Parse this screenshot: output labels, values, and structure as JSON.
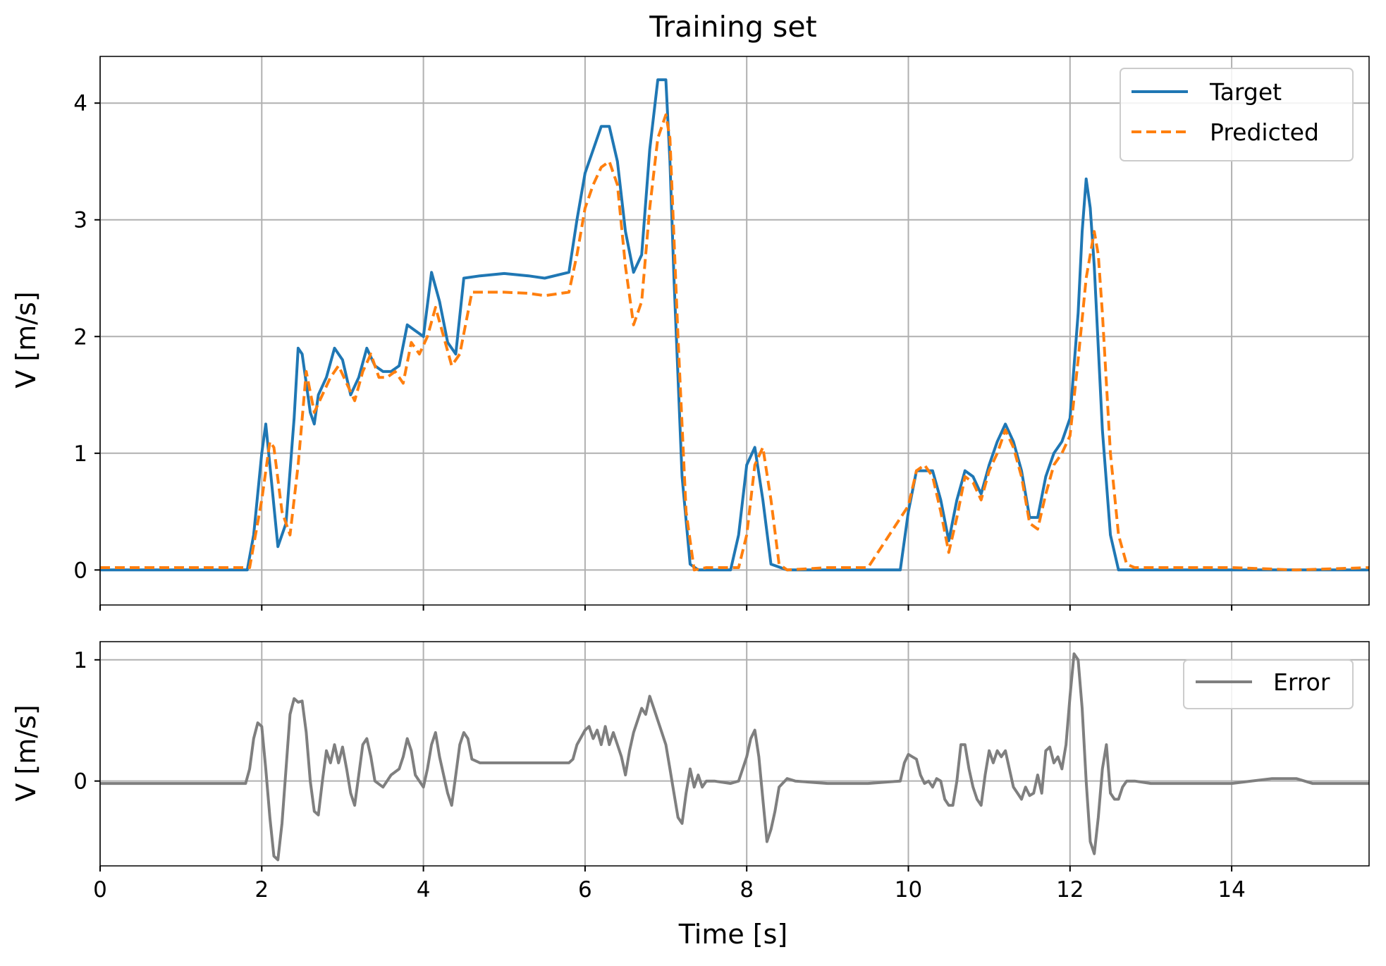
{
  "chart_data": [
    {
      "type": "line",
      "title": "Training set",
      "xlabel": "",
      "ylabel": "V [m/s]",
      "xlim": [
        0,
        15.7
      ],
      "ylim": [
        -0.3,
        4.4
      ],
      "xticks": [
        0,
        2,
        4,
        6,
        8,
        10,
        12,
        14
      ],
      "yticks": [
        0,
        1,
        2,
        3,
        4
      ],
      "grid": true,
      "legend_position": "top-right",
      "colors": {
        "Target": "#1f77b4",
        "Predicted": "#ff7f0e"
      },
      "series": [
        {
          "name": "Target",
          "style": "solid",
          "x": [
            0,
            1.82,
            1.9,
            2.0,
            2.05,
            2.1,
            2.2,
            2.3,
            2.4,
            2.45,
            2.5,
            2.55,
            2.6,
            2.65,
            2.7,
            2.8,
            2.9,
            3.0,
            3.1,
            3.2,
            3.3,
            3.4,
            3.5,
            3.6,
            3.7,
            3.8,
            3.9,
            4.0,
            4.1,
            4.2,
            4.3,
            4.4,
            4.5,
            4.7,
            5.0,
            5.3,
            5.5,
            5.8,
            5.9,
            6.0,
            6.1,
            6.2,
            6.3,
            6.4,
            6.5,
            6.6,
            6.7,
            6.8,
            6.9,
            7.0,
            7.05,
            7.1,
            7.2,
            7.3,
            7.4,
            7.8,
            7.9,
            8.0,
            8.1,
            8.2,
            8.3,
            8.5,
            9.0,
            9.5,
            9.9,
            10.0,
            10.1,
            10.2,
            10.3,
            10.4,
            10.5,
            10.6,
            10.7,
            10.8,
            10.9,
            11.0,
            11.1,
            11.2,
            11.3,
            11.4,
            11.5,
            11.6,
            11.7,
            11.8,
            11.9,
            12.0,
            12.1,
            12.15,
            12.2,
            12.25,
            12.3,
            12.4,
            12.5,
            12.6,
            12.7,
            13.0,
            14.0,
            15.7
          ],
          "y": [
            0,
            0,
            0.3,
            1.0,
            1.25,
            0.9,
            0.2,
            0.4,
            1.3,
            1.9,
            1.85,
            1.6,
            1.35,
            1.25,
            1.5,
            1.65,
            1.9,
            1.8,
            1.5,
            1.65,
            1.9,
            1.75,
            1.7,
            1.7,
            1.75,
            2.1,
            2.05,
            2.0,
            2.55,
            2.3,
            1.95,
            1.85,
            2.5,
            2.52,
            2.54,
            2.52,
            2.5,
            2.55,
            3.0,
            3.4,
            3.6,
            3.8,
            3.8,
            3.5,
            2.9,
            2.55,
            2.7,
            3.6,
            4.2,
            4.2,
            3.5,
            2.5,
            0.8,
            0.05,
            0,
            0,
            0.3,
            0.9,
            1.05,
            0.6,
            0.05,
            0,
            0,
            0,
            0,
            0.5,
            0.85,
            0.85,
            0.85,
            0.6,
            0.25,
            0.6,
            0.85,
            0.8,
            0.65,
            0.9,
            1.1,
            1.25,
            1.1,
            0.85,
            0.45,
            0.45,
            0.8,
            1.0,
            1.1,
            1.3,
            2.2,
            2.9,
            3.35,
            3.1,
            2.6,
            1.2,
            0.3,
            0,
            0,
            0,
            0,
            0
          ]
        },
        {
          "name": "Predicted",
          "style": "dashed",
          "x": [
            0,
            1.85,
            2.0,
            2.1,
            2.15,
            2.25,
            2.35,
            2.45,
            2.55,
            2.65,
            2.75,
            2.85,
            2.95,
            3.05,
            3.15,
            3.25,
            3.35,
            3.45,
            3.55,
            3.65,
            3.75,
            3.85,
            3.95,
            4.05,
            4.15,
            4.25,
            4.35,
            4.45,
            4.6,
            4.8,
            5.0,
            5.3,
            5.5,
            5.8,
            5.9,
            6.0,
            6.1,
            6.2,
            6.3,
            6.4,
            6.5,
            6.6,
            6.7,
            6.8,
            6.9,
            7.0,
            7.05,
            7.15,
            7.25,
            7.35,
            7.5,
            7.9,
            8.0,
            8.1,
            8.2,
            8.3,
            8.4,
            8.5,
            9.0,
            9.5,
            10.0,
            10.1,
            10.2,
            10.3,
            10.4,
            10.5,
            10.6,
            10.7,
            10.8,
            10.9,
            11.0,
            11.1,
            11.2,
            11.3,
            11.4,
            11.5,
            11.6,
            11.7,
            11.8,
            11.9,
            12.0,
            12.1,
            12.2,
            12.3,
            12.35,
            12.4,
            12.5,
            12.6,
            12.7,
            12.8,
            13.0,
            14.0,
            14.8,
            15.7
          ],
          "y": [
            0.02,
            0.02,
            0.6,
            1.1,
            1.05,
            0.5,
            0.3,
            0.9,
            1.7,
            1.35,
            1.5,
            1.65,
            1.75,
            1.6,
            1.45,
            1.7,
            1.85,
            1.65,
            1.65,
            1.7,
            1.6,
            1.95,
            1.85,
            2.0,
            2.25,
            2.0,
            1.75,
            1.85,
            2.38,
            2.38,
            2.38,
            2.37,
            2.35,
            2.38,
            2.7,
            3.1,
            3.3,
            3.45,
            3.5,
            3.3,
            2.6,
            2.1,
            2.3,
            3.1,
            3.7,
            3.9,
            3.7,
            2.0,
            0.5,
            0.0,
            0.02,
            0.02,
            0.3,
            0.9,
            1.05,
            0.6,
            0.05,
            0,
            0.02,
            0.02,
            0.55,
            0.85,
            0.9,
            0.8,
            0.5,
            0.15,
            0.45,
            0.8,
            0.75,
            0.6,
            0.85,
            1.0,
            1.2,
            1.05,
            0.8,
            0.4,
            0.35,
            0.65,
            0.9,
            1.0,
            1.15,
            1.8,
            2.5,
            2.9,
            2.7,
            2.2,
            1.0,
            0.3,
            0.05,
            0.02,
            0.02,
            0.02,
            0.0,
            0.02
          ]
        }
      ]
    },
    {
      "type": "line",
      "title": "",
      "xlabel": "Time [s]",
      "ylabel": "V [m/s]",
      "xlim": [
        0,
        15.7
      ],
      "ylim": [
        -0.7,
        1.15
      ],
      "xticks": [
        0,
        2,
        4,
        6,
        8,
        10,
        12,
        14
      ],
      "yticks": [
        0,
        1
      ],
      "grid": true,
      "legend_position": "top-right",
      "colors": {
        "Error": "#7f7f7f"
      },
      "series": [
        {
          "name": "Error",
          "style": "solid",
          "x": [
            0,
            1.8,
            1.85,
            1.9,
            1.95,
            2.0,
            2.05,
            2.1,
            2.15,
            2.2,
            2.25,
            2.3,
            2.35,
            2.4,
            2.45,
            2.5,
            2.55,
            2.6,
            2.65,
            2.7,
            2.75,
            2.8,
            2.85,
            2.9,
            2.95,
            3.0,
            3.05,
            3.1,
            3.15,
            3.2,
            3.25,
            3.3,
            3.35,
            3.4,
            3.5,
            3.6,
            3.7,
            3.75,
            3.8,
            3.85,
            3.9,
            4.0,
            4.05,
            4.1,
            4.15,
            4.2,
            4.3,
            4.35,
            4.4,
            4.45,
            4.5,
            4.55,
            4.6,
            4.7,
            5.0,
            5.5,
            5.8,
            5.85,
            5.9,
            6.0,
            6.05,
            6.1,
            6.15,
            6.2,
            6.25,
            6.3,
            6.35,
            6.4,
            6.45,
            6.5,
            6.55,
            6.6,
            6.65,
            6.7,
            6.75,
            6.8,
            6.85,
            6.9,
            6.95,
            7.0,
            7.05,
            7.1,
            7.15,
            7.2,
            7.25,
            7.3,
            7.35,
            7.4,
            7.45,
            7.5,
            7.6,
            7.8,
            7.9,
            8.0,
            8.05,
            8.1,
            8.15,
            8.2,
            8.25,
            8.3,
            8.35,
            8.4,
            8.5,
            8.6,
            9.0,
            9.5,
            9.9,
            9.95,
            10.0,
            10.05,
            10.1,
            10.15,
            10.2,
            10.25,
            10.3,
            10.35,
            10.4,
            10.45,
            10.5,
            10.55,
            10.6,
            10.65,
            10.7,
            10.75,
            10.8,
            10.85,
            10.9,
            10.95,
            11.0,
            11.05,
            11.1,
            11.15,
            11.2,
            11.25,
            11.3,
            11.35,
            11.4,
            11.45,
            11.5,
            11.55,
            11.6,
            11.65,
            11.7,
            11.75,
            11.8,
            11.85,
            11.9,
            11.95,
            12.0,
            12.05,
            12.1,
            12.15,
            12.2,
            12.25,
            12.3,
            12.35,
            12.4,
            12.45,
            12.5,
            12.55,
            12.6,
            12.65,
            12.7,
            12.8,
            13.0,
            14.0,
            14.5,
            14.8,
            15.0,
            15.7
          ],
          "y": [
            -0.02,
            -0.02,
            0.1,
            0.35,
            0.48,
            0.45,
            0.1,
            -0.3,
            -0.62,
            -0.65,
            -0.35,
            0.1,
            0.55,
            0.68,
            0.65,
            0.66,
            0.4,
            0.0,
            -0.25,
            -0.28,
            0.0,
            0.25,
            0.15,
            0.3,
            0.15,
            0.28,
            0.1,
            -0.1,
            -0.2,
            0.05,
            0.3,
            0.35,
            0.2,
            0.0,
            -0.05,
            0.05,
            0.1,
            0.2,
            0.35,
            0.25,
            0.05,
            -0.05,
            0.1,
            0.3,
            0.4,
            0.2,
            -0.1,
            -0.2,
            0.05,
            0.3,
            0.4,
            0.35,
            0.18,
            0.15,
            0.15,
            0.15,
            0.15,
            0.18,
            0.3,
            0.42,
            0.45,
            0.35,
            0.42,
            0.3,
            0.45,
            0.3,
            0.4,
            0.3,
            0.2,
            0.05,
            0.25,
            0.4,
            0.5,
            0.6,
            0.55,
            0.7,
            0.6,
            0.5,
            0.4,
            0.3,
            0.1,
            -0.1,
            -0.3,
            -0.35,
            -0.1,
            0.1,
            -0.05,
            0.05,
            -0.05,
            0.0,
            0.0,
            -0.02,
            0.0,
            0.2,
            0.35,
            0.42,
            0.2,
            -0.15,
            -0.5,
            -0.4,
            -0.25,
            -0.05,
            0.02,
            0.0,
            -0.02,
            -0.02,
            0.0,
            0.15,
            0.22,
            0.2,
            0.18,
            0.05,
            -0.02,
            0.0,
            -0.05,
            0.02,
            0.0,
            -0.15,
            -0.2,
            -0.2,
            0.0,
            0.3,
            0.3,
            0.1,
            -0.05,
            -0.15,
            -0.2,
            0.05,
            0.25,
            0.15,
            0.25,
            0.2,
            0.25,
            0.1,
            -0.05,
            -0.1,
            -0.15,
            -0.05,
            -0.12,
            -0.1,
            0.05,
            -0.1,
            0.25,
            0.28,
            0.15,
            0.2,
            0.1,
            0.3,
            0.7,
            1.05,
            1.0,
            0.6,
            0.0,
            -0.5,
            -0.6,
            -0.3,
            0.1,
            0.3,
            -0.1,
            -0.15,
            -0.15,
            -0.05,
            0.0,
            0.0,
            -0.02,
            -0.02,
            0.02,
            0.02,
            -0.02,
            -0.02
          ]
        }
      ]
    }
  ]
}
